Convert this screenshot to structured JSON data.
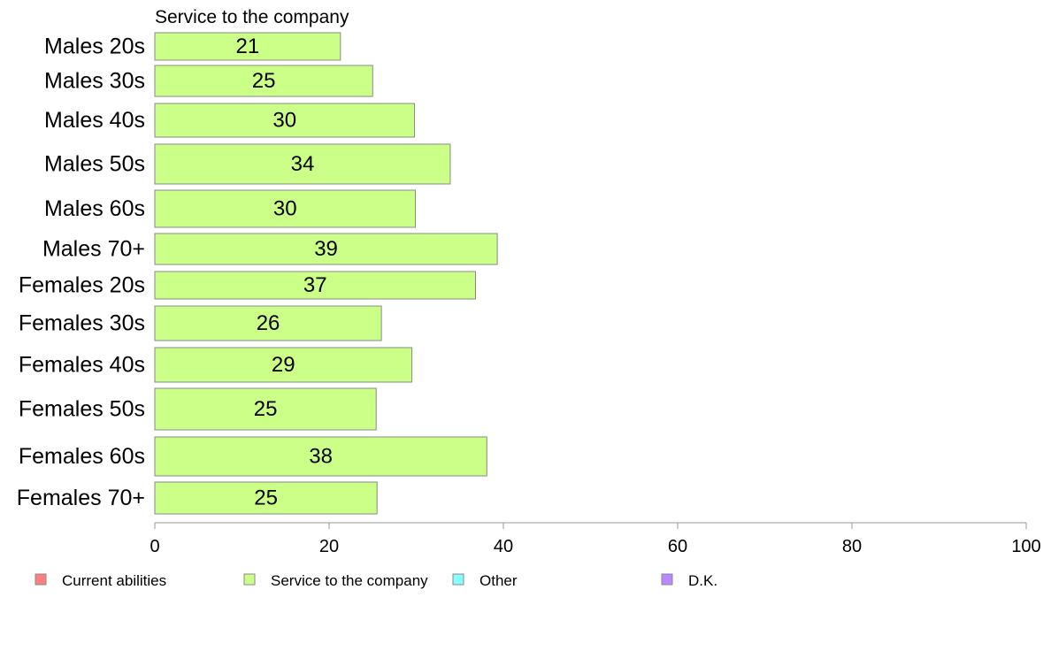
{
  "chart_data": {
    "type": "bar",
    "orientation": "horizontal",
    "series_title": "Service to the company",
    "categories": [
      "Males 20s",
      "Males 30s",
      "Males 40s",
      "Males 50s",
      "Males 60s",
      "Males 70+",
      "Females 20s",
      "Females 30s",
      "Females 40s",
      "Females 50s",
      "Females 60s",
      "Females 70+"
    ],
    "series": [
      {
        "name": "Service to the company",
        "values": [
          21.3,
          25.0,
          29.8,
          33.9,
          29.9,
          39.3,
          36.8,
          26.0,
          29.5,
          25.4,
          38.1,
          25.5
        ],
        "labels": [
          "21",
          "25",
          "30",
          "34",
          "30",
          "39",
          "37",
          "26",
          "29",
          "25",
          "38",
          "25"
        ],
        "color": "#CCFF88"
      }
    ],
    "xlim": [
      0,
      100
    ],
    "xticks": [
      0,
      20,
      40,
      60,
      80,
      100
    ],
    "grid": false,
    "legend_position": "bottom",
    "legend": [
      {
        "label": "Current abilities",
        "color": "#FF8080"
      },
      {
        "label": "Service to the company",
        "color": "#CCFF88"
      },
      {
        "label": "Other",
        "color": "#88FFFF"
      },
      {
        "label": "D.K.",
        "color": "#BB88FF"
      }
    ]
  }
}
